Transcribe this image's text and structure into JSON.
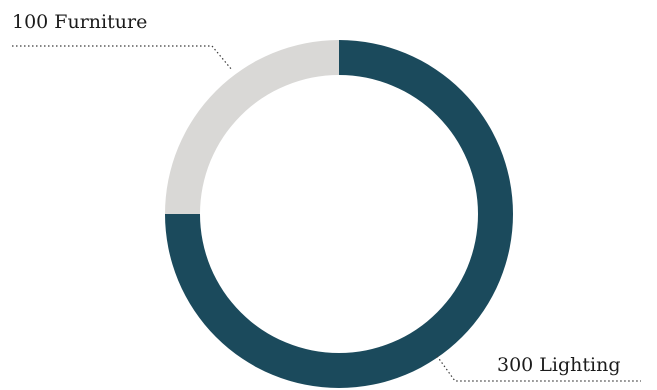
{
  "chart_data": {
    "type": "pie",
    "variant": "donut",
    "slices": [
      {
        "label": "Lighting",
        "value": 300,
        "color": "#1b4a5c",
        "label_text": "300 Lighting",
        "label_position": "bottom-right"
      },
      {
        "label": "Furniture",
        "value": 100,
        "color": "#d9d8d6",
        "label_text": "100 Furniture",
        "label_position": "top-left"
      }
    ],
    "start_angle": "top",
    "direction": "clockwise",
    "legend": "none"
  }
}
